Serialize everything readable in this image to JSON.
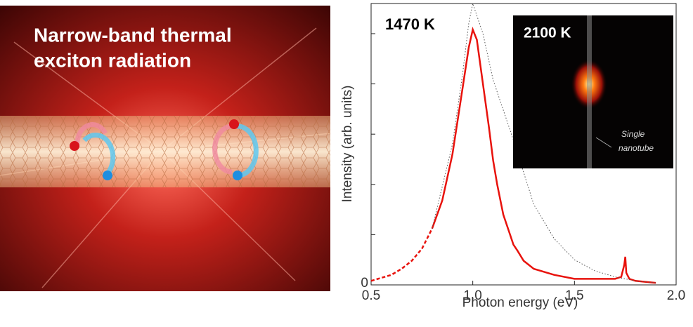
{
  "illustration": {
    "title_lines": [
      "Narrow-band thermal",
      "exciton radiation"
    ]
  },
  "chart_data": {
    "type": "line",
    "xlabel": "Photon energy (eV)",
    "ylabel": "Intensity (arb. units)",
    "annotation": "1470 K",
    "inset": {
      "label": "2100 K",
      "caption_lines": [
        "Single",
        "nanotube"
      ]
    },
    "xlim": [
      0.5,
      2.0
    ],
    "xticks": [
      0.5,
      {
        "value": 1,
        "label": "1.0"
      },
      1.5,
      {
        "value": 2,
        "label": "2.0"
      }
    ],
    "ylim": [
      0,
      1.4
    ],
    "yticks": [
      0
    ],
    "yminorticks": [
      0.25,
      0.5,
      0.75,
      1,
      1.25
    ],
    "series": [
      {
        "color": "#e8120c",
        "style": "dashed",
        "x": [
          0.5,
          0.55,
          0.6,
          0.65,
          0.7,
          0.75,
          0.8
        ],
        "values": [
          0.02,
          0.035,
          0.05,
          0.08,
          0.12,
          0.18,
          0.28
        ]
      },
      {
        "color": "#e8120c",
        "style": "solid",
        "x": [
          0.8,
          0.85,
          0.9,
          0.95,
          0.98,
          1.0,
          1.02,
          1.05,
          1.08,
          1.1,
          1.12,
          1.15,
          1.18,
          1.2,
          1.22,
          1.25,
          1.3,
          1.4,
          1.5,
          1.6,
          1.7,
          1.73,
          1.745,
          1.75,
          1.755,
          1.77,
          1.8,
          1.9
        ],
        "values": [
          0.28,
          0.42,
          0.65,
          0.98,
          1.18,
          1.27,
          1.22,
          1.0,
          0.78,
          0.62,
          0.5,
          0.35,
          0.26,
          0.2,
          0.17,
          0.12,
          0.08,
          0.05,
          0.03,
          0.03,
          0.03,
          0.04,
          0.1,
          0.14,
          0.06,
          0.03,
          0.02,
          0.01
        ]
      },
      {
        "color": "#555555",
        "style": "dotted",
        "x": [
          0.8,
          0.9,
          0.95,
          0.98,
          1.0,
          1.05,
          1.1,
          1.2,
          1.3,
          1.4,
          1.5,
          1.6,
          1.7,
          1.8,
          1.9
        ],
        "values": [
          0.28,
          0.7,
          1.05,
          1.3,
          1.4,
          1.25,
          1.02,
          0.72,
          0.4,
          0.23,
          0.125,
          0.07,
          0.04,
          0.02,
          0.01
        ]
      }
    ]
  }
}
